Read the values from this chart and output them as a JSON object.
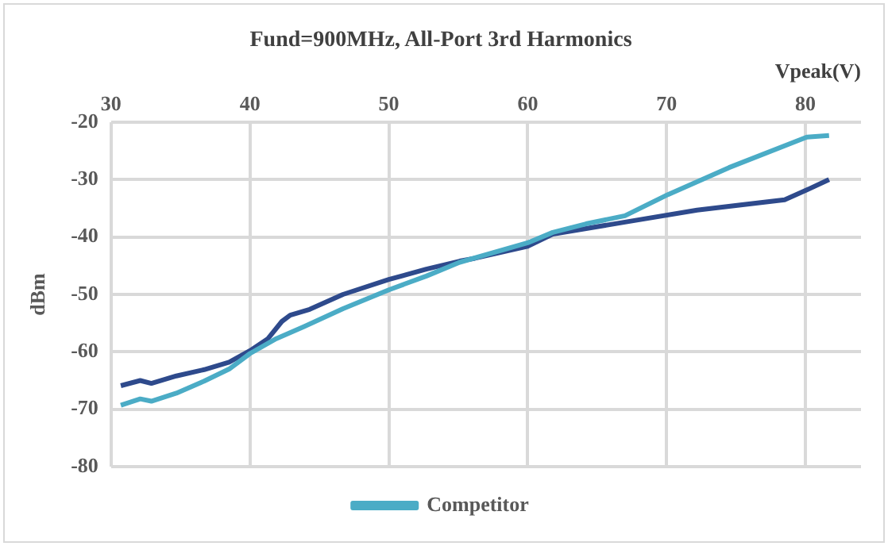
{
  "chart_data": {
    "type": "line",
    "title": "Fund=900MHz, All-Port 3rd Harmonics",
    "xlabel": "Vpeak(V)",
    "ylabel": "dBm",
    "xlim": [
      30,
      84
    ],
    "xticks": [
      30,
      40,
      50,
      60,
      70,
      80
    ],
    "ylim": [
      -80,
      -20
    ],
    "yticks": [
      -80,
      -70,
      -60,
      -50,
      -40,
      -30,
      -20
    ],
    "grid": true,
    "legend": "bottom",
    "marker": "none",
    "line_style": "solid",
    "series": [
      {
        "name": "Competitor",
        "color": "#4bacc6",
        "x": [
          30.7,
          32.1,
          32.9,
          34.7,
          36.7,
          38.5,
          40,
          41.9,
          43.9,
          46.7,
          50,
          52.7,
          55.1,
          60,
          61.8,
          64.2,
          67,
          70.1,
          74.5,
          80.1,
          81.7
        ],
        "values": [
          -69.3,
          -68.2,
          -68.6,
          -67.2,
          -65.1,
          -63,
          -60.3,
          -57.7,
          -55.6,
          -52.5,
          -49.2,
          -46.8,
          -44.4,
          -41,
          -39.2,
          -37.7,
          -36.3,
          -32.6,
          -27.9,
          -22.6,
          -22.3
        ]
      },
      {
        "color": "#2e4a8c",
        "x": [
          30.7,
          32.1,
          32.9,
          34.7,
          36.7,
          38.5,
          40,
          41.3,
          42.3,
          42.9,
          44.3,
          46.7,
          50,
          52.7,
          55.1,
          56.2,
          60,
          61.8,
          67,
          72.2,
          78.5,
          80.1,
          81.7
        ],
        "values": [
          -65.9,
          -65,
          -65.5,
          -64.2,
          -63.1,
          -61.8,
          -59.8,
          -57.7,
          -54.7,
          -53.6,
          -52.6,
          -50,
          -47.4,
          -45.6,
          -44.2,
          -43.7,
          -41.6,
          -39.5,
          -37.4,
          -35.3,
          -33.5,
          -31.8,
          -30
        ]
      }
    ]
  }
}
